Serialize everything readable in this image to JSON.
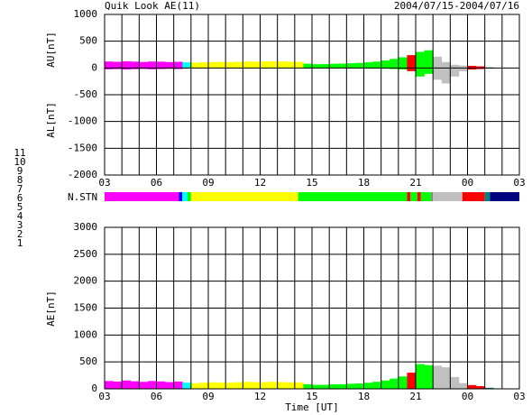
{
  "chart_data": [
    {
      "type": "band",
      "title": "Quik Look AE(11)",
      "subtitle": "2004/07/15-2004/07/16",
      "y_labels": [
        "AU[nT]",
        "AL[nT]"
      ],
      "x": [
        0,
        0.5,
        1,
        1.5,
        2,
        2.5,
        3,
        3.5,
        4,
        4.5,
        5,
        5.5,
        6,
        6.5,
        7,
        7.5,
        8,
        8.5,
        9,
        9.5,
        10,
        10.5,
        11,
        11.5,
        12,
        12.5,
        13,
        13.5,
        14,
        14.5,
        15,
        15.5,
        16,
        16.5,
        17,
        17.5,
        18,
        18.5,
        19,
        19.5,
        20,
        20.5,
        21,
        21.5,
        22
      ],
      "series": [
        {
          "values": [
            120,
            115,
            125,
            118,
            112,
            120,
            118,
            110,
            115,
            105,
            100,
            105,
            110,
            112,
            108,
            115,
            120,
            118,
            122,
            125,
            120,
            118,
            115,
            80,
            70,
            72,
            78,
            82,
            88,
            95,
            105,
            120,
            140,
            170,
            200,
            240,
            300,
            330,
            210,
            110,
            60,
            45,
            40,
            30,
            10
          ]
        },
        {
          "values": [
            -25,
            -20,
            -30,
            -22,
            -18,
            -25,
            -20,
            -15,
            -20,
            -10,
            -5,
            -8,
            -10,
            -6,
            -5,
            -8,
            -10,
            -5,
            -4,
            -6,
            -5,
            -3,
            -5,
            -5,
            -3,
            -2,
            -5,
            -4,
            -6,
            -5,
            -8,
            -10,
            -15,
            -20,
            -30,
            -60,
            -160,
            -110,
            -220,
            -290,
            -160,
            -60,
            -30,
            -20,
            -10
          ]
        }
      ],
      "xlim": [
        0,
        24
      ],
      "xticks": [
        {
          "value": 0,
          "label": "03"
        },
        {
          "value": 3,
          "label": "06"
        },
        {
          "value": 6,
          "label": "09"
        },
        {
          "value": 9,
          "label": "12"
        },
        {
          "value": 12,
          "label": "15"
        },
        {
          "value": 15,
          "label": "18"
        },
        {
          "value": 18,
          "label": "21"
        },
        {
          "value": 21,
          "label": "00"
        },
        {
          "value": 24,
          "label": "03"
        }
      ],
      "ylim": [
        -2000,
        1000
      ],
      "yticks": [
        -2000,
        -1500,
        -1000,
        -500,
        0,
        500,
        1000
      ]
    },
    {
      "type": "station-bar",
      "ylabel": "N.STN",
      "xlim": [
        0,
        24
      ],
      "stations": [
        {
          "value": 11,
          "color": "#00ffff"
        },
        {
          "value": 10,
          "color": "#ff00ff"
        },
        {
          "value": 9,
          "color": "#0000ff"
        },
        {
          "value": 8,
          "color": "#ffff00"
        },
        {
          "value": 7,
          "color": "#00ff00"
        },
        {
          "value": 6,
          "color": "#ff0000"
        },
        {
          "value": 5,
          "color": "#c0c0c0"
        },
        {
          "value": 4,
          "color": "#808080"
        },
        {
          "value": 3,
          "color": "#008080"
        },
        {
          "value": 2,
          "color": "#800080"
        },
        {
          "value": 1,
          "color": "#000080"
        }
      ],
      "segments": [
        {
          "start": 0,
          "end": 4.3,
          "n": 10
        },
        {
          "start": 4.3,
          "end": 4.5,
          "n": 9
        },
        {
          "start": 4.5,
          "end": 4.8,
          "n": 11
        },
        {
          "start": 4.8,
          "end": 5.0,
          "n": 7
        },
        {
          "start": 5.0,
          "end": 11.2,
          "n": 8
        },
        {
          "start": 11.2,
          "end": 17.5,
          "n": 7
        },
        {
          "start": 17.5,
          "end": 17.7,
          "n": 6
        },
        {
          "start": 17.7,
          "end": 18.1,
          "n": 7
        },
        {
          "start": 18.1,
          "end": 18.3,
          "n": 6
        },
        {
          "start": 18.3,
          "end": 18.9,
          "n": 7
        },
        {
          "start": 18.9,
          "end": 19.0,
          "n": 4
        },
        {
          "start": 19.0,
          "end": 20.7,
          "n": 5
        },
        {
          "start": 20.7,
          "end": 22.0,
          "n": 6
        },
        {
          "start": 22.0,
          "end": 22.3,
          "n": 3
        },
        {
          "start": 22.3,
          "end": 24,
          "n": 1
        }
      ]
    },
    {
      "type": "area",
      "ylabel": "AE[nT]",
      "xlabel": "Time [UT]",
      "x": [
        0,
        0.5,
        1,
        1.5,
        2,
        2.5,
        3,
        3.5,
        4,
        4.5,
        5,
        5.5,
        6,
        6.5,
        7,
        7.5,
        8,
        8.5,
        9,
        9.5,
        10,
        10.5,
        11,
        11.5,
        12,
        12.5,
        13,
        13.5,
        14,
        14.5,
        15,
        15.5,
        16,
        16.5,
        17,
        17.5,
        18,
        18.5,
        19,
        19.5,
        20,
        20.5,
        21,
        21.5,
        22
      ],
      "values": [
        145,
        135,
        155,
        140,
        130,
        145,
        138,
        125,
        135,
        115,
        105,
        113,
        120,
        118,
        113,
        123,
        130,
        123,
        126,
        131,
        125,
        121,
        120,
        85,
        73,
        74,
        83,
        86,
        94,
        100,
        113,
        130,
        155,
        190,
        230,
        300,
        460,
        440,
        430,
        400,
        220,
        105,
        70,
        50,
        20
      ],
      "xlim": [
        0,
        24
      ],
      "xticks": [
        {
          "value": 0,
          "label": "03"
        },
        {
          "value": 3,
          "label": "06"
        },
        {
          "value": 6,
          "label": "09"
        },
        {
          "value": 9,
          "label": "12"
        },
        {
          "value": 12,
          "label": "15"
        },
        {
          "value": 15,
          "label": "18"
        },
        {
          "value": 18,
          "label": "21"
        },
        {
          "value": 21,
          "label": "00"
        },
        {
          "value": 24,
          "label": "03"
        }
      ],
      "ylim": [
        0,
        3000
      ],
      "yticks": [
        0,
        500,
        1000,
        1500,
        2000,
        2500,
        3000
      ]
    }
  ]
}
